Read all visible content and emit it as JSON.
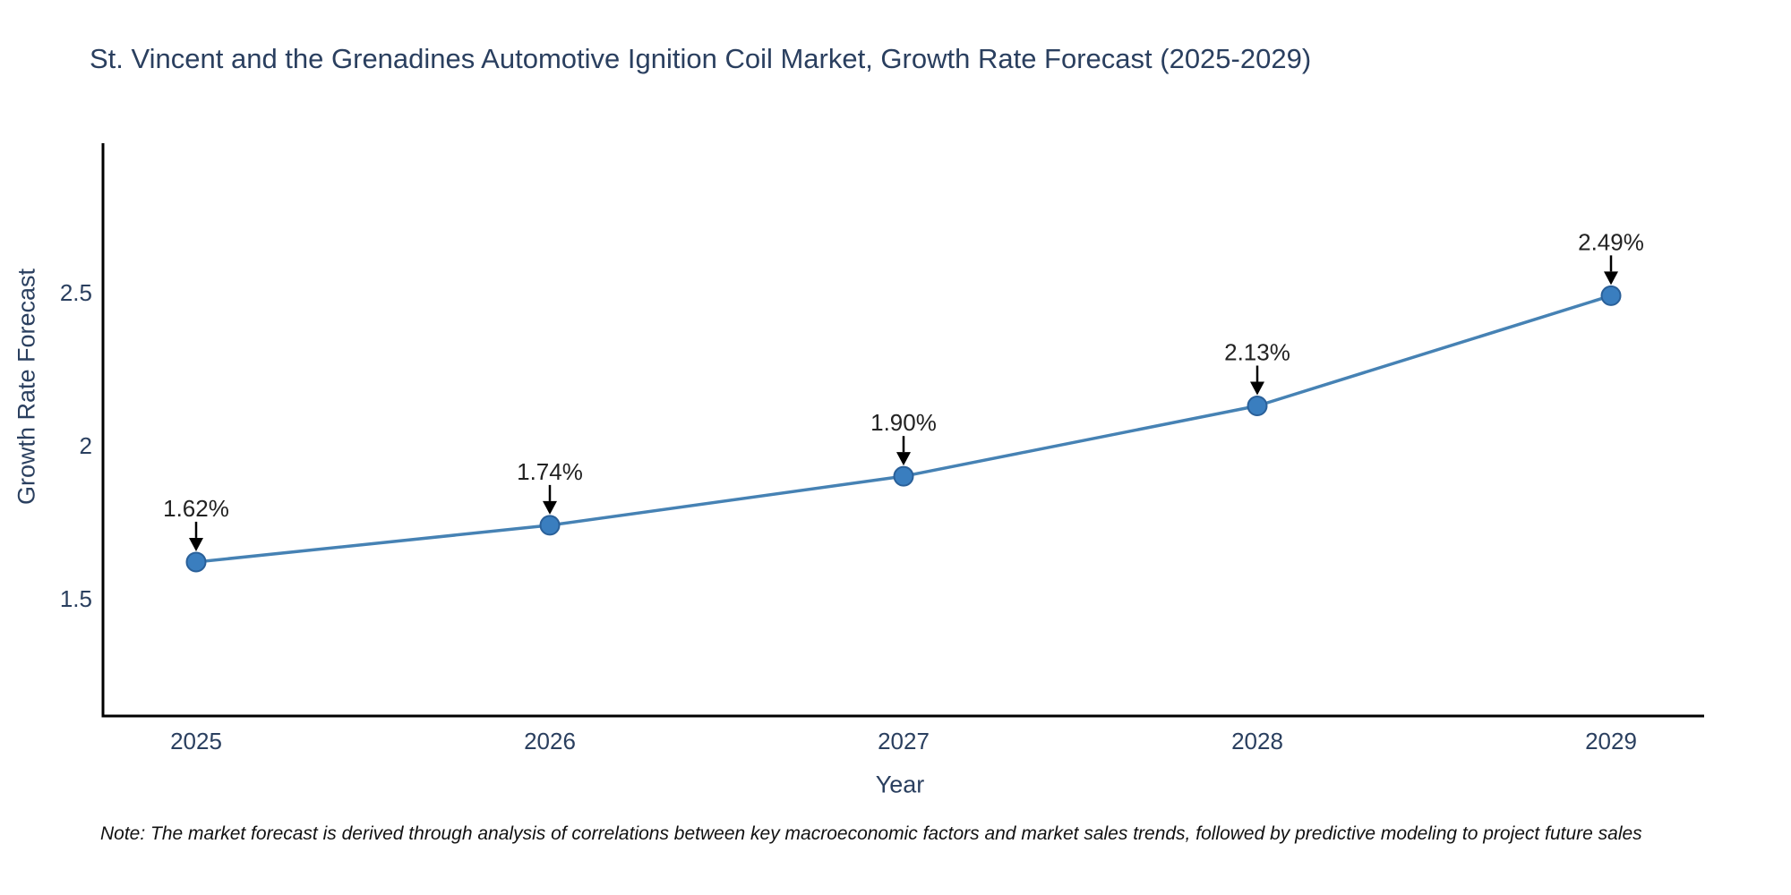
{
  "title": {
    "text": "St. Vincent and the Grenadines Automotive Ignition Coil Market, Growth Rate Forecast (2025-2029)"
  },
  "note": {
    "text": "Note: The market forecast is derived through analysis of correlations between key macroeconomic factors and market sales trends, followed by predictive modeling to project future sales"
  },
  "chart_data": {
    "type": "line",
    "title": "St. Vincent and the Grenadines Automotive Ignition Coil Market, Growth Rate Forecast (2025-2029)",
    "xlabel": "Year",
    "ylabel": "Growth Rate Forecast",
    "x": [
      2025,
      2026,
      2027,
      2028,
      2029
    ],
    "values": [
      1.62,
      1.74,
      1.9,
      2.13,
      2.49
    ],
    "point_labels": [
      "1.62%",
      "1.74%",
      "1.90%",
      "2.13%",
      "2.49%"
    ],
    "x_ticks": [
      "2025",
      "2026",
      "2027",
      "2028",
      "2029"
    ],
    "y_ticks": [
      "1.5",
      "2",
      "2.5"
    ],
    "y_tick_values": [
      1.5,
      2.0,
      2.5
    ],
    "ylim": [
      1.117,
      2.988
    ],
    "grid": false,
    "legend": "none",
    "colors": {
      "line": "#4682b4",
      "marker_fill": "#3a7ebf",
      "marker_edge": "#2a6099",
      "axis_line": "#000000",
      "tick_text": "#2a3f5f",
      "annotation_text": "#222222",
      "arrow": "#000000"
    }
  }
}
